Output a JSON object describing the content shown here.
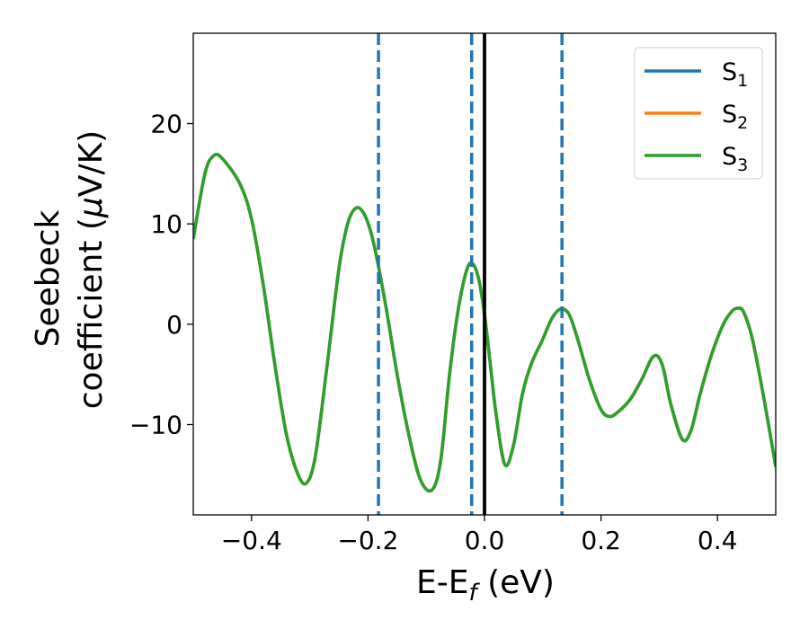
{
  "chart_data": {
    "type": "line",
    "title": "",
    "xlabel": {
      "main": "E-E",
      "sub": "f",
      "suffix": " (eV)"
    },
    "ylabel": {
      "line1": "Seebeck",
      "line2_prefix": "coefficient  (",
      "mu": "μ",
      "line2_suffix": "V/K)"
    },
    "xlim": [
      -0.5,
      0.5
    ],
    "ylim": [
      -19,
      29
    ],
    "x_ticks": [
      -0.4,
      -0.2,
      0.0,
      0.2,
      0.4
    ],
    "x_tick_labels": [
      "−0.4",
      "−0.2",
      "0.0",
      "0.2",
      "0.4"
    ],
    "y_ticks": [
      -10,
      0,
      10,
      20
    ],
    "y_tick_labels": [
      "−10",
      "0",
      "10",
      "20"
    ],
    "grid": false,
    "legend_position": "top-right",
    "fermi_line": {
      "x": 0.0,
      "color": "#000000",
      "style": "solid"
    },
    "vlines": [
      {
        "x": -0.182,
        "color": "#1f77b4",
        "style": "dashed"
      },
      {
        "x": -0.022,
        "color": "#1f77b4",
        "style": "dashed"
      },
      {
        "x": 0.133,
        "color": "#1f77b4",
        "style": "dashed"
      }
    ],
    "series": [
      {
        "name": "S",
        "sub": "1",
        "color": "#1f77b4"
      },
      {
        "name": "S",
        "sub": "2",
        "color": "#ff7f0e"
      },
      {
        "name": "S",
        "sub": "3",
        "color": "#2ca02c"
      }
    ],
    "x": [
      -0.5,
      -0.48,
      -0.465,
      -0.45,
      -0.42,
      -0.4,
      -0.38,
      -0.36,
      -0.34,
      -0.32,
      -0.305,
      -0.29,
      -0.27,
      -0.25,
      -0.235,
      -0.22,
      -0.205,
      -0.19,
      -0.17,
      -0.15,
      -0.13,
      -0.11,
      -0.09,
      -0.075,
      -0.06,
      -0.045,
      -0.03,
      -0.02,
      -0.01,
      0.0,
      0.01,
      0.02,
      0.035,
      0.05,
      0.065,
      0.08,
      0.1,
      0.115,
      0.13,
      0.145,
      0.16,
      0.18,
      0.2,
      0.215,
      0.23,
      0.25,
      0.27,
      0.29,
      0.305,
      0.32,
      0.34,
      0.355,
      0.37,
      0.39,
      0.41,
      0.425,
      0.435,
      0.445,
      0.46,
      0.48,
      0.5
    ],
    "y": [
      8.5,
      15.0,
      16.8,
      16.5,
      14.0,
      10.5,
      4.0,
      -4.0,
      -11.0,
      -15.0,
      -15.8,
      -13.0,
      -4.0,
      5.5,
      10.0,
      11.6,
      10.8,
      8.0,
      2.0,
      -5.0,
      -11.0,
      -15.5,
      -16.5,
      -13.5,
      -5.0,
      1.5,
      5.5,
      6.0,
      4.5,
      1.0,
      -4.0,
      -9.0,
      -14.0,
      -12.0,
      -7.0,
      -4.0,
      -1.5,
      0.5,
      1.5,
      1.0,
      -1.5,
      -5.5,
      -8.5,
      -9.2,
      -8.7,
      -7.5,
      -5.5,
      -3.2,
      -4.0,
      -8.0,
      -11.5,
      -10.5,
      -7.0,
      -3.0,
      0.0,
      1.3,
      1.6,
      1.2,
      -1.5,
      -7.5,
      -14.2
    ]
  }
}
